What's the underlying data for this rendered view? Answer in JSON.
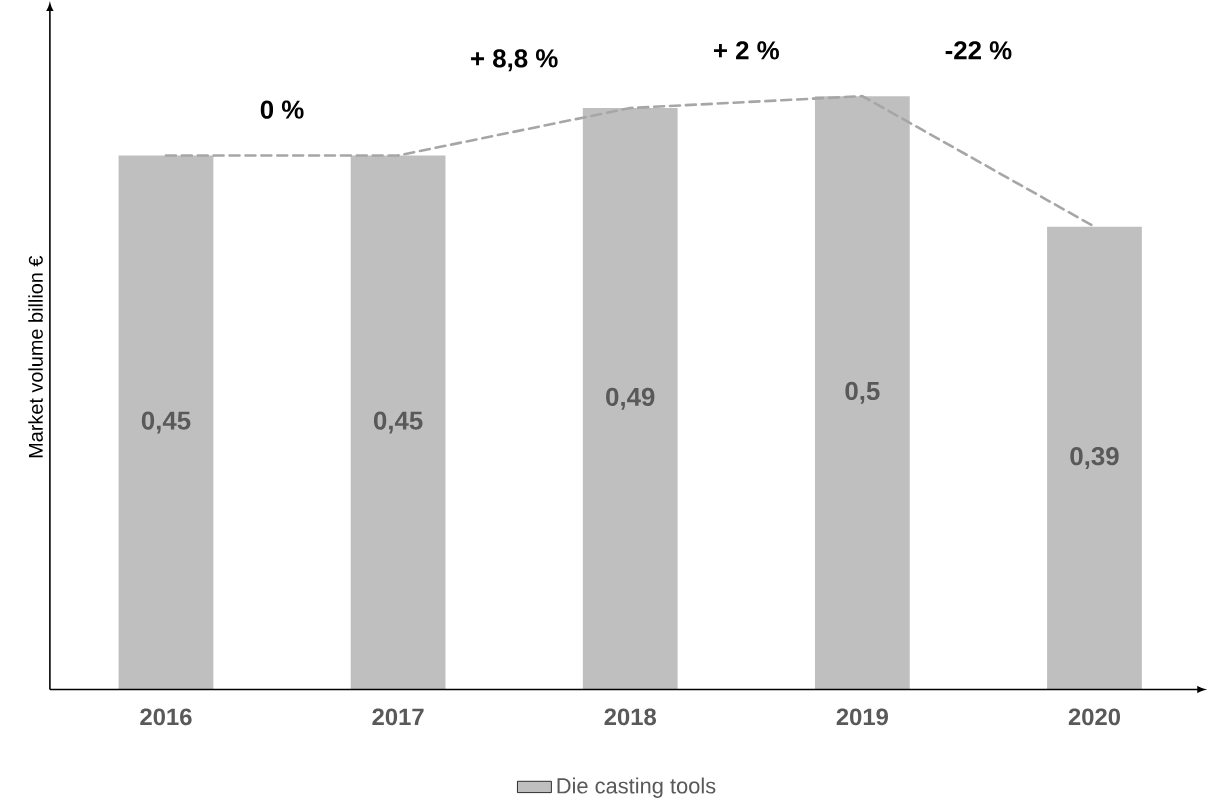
{
  "chart_data": {
    "type": "bar",
    "ylabel": "Market volume billion €",
    "categories": [
      "2016",
      "2017",
      "2018",
      "2019",
      "2020"
    ],
    "series": [
      {
        "name": "Die casting tools",
        "type": "bar",
        "color": "#bfbfbf",
        "values": [
          0.45,
          0.45,
          0.49,
          0.5,
          0.39
        ],
        "value_labels": [
          "0,45",
          "0,45",
          "0,49",
          "0,5",
          "0,39"
        ]
      },
      {
        "type": "line",
        "color": "#a6a6a6",
        "line_style": "dashed",
        "marker": "none",
        "values": [
          0.45,
          0.45,
          0.49,
          0.5,
          0.39
        ]
      }
    ],
    "annotations": [
      "0 %",
      "+ 8,8 %",
      "+ 2 %",
      "-22 %"
    ],
    "legend": "bottom",
    "grid": false
  }
}
